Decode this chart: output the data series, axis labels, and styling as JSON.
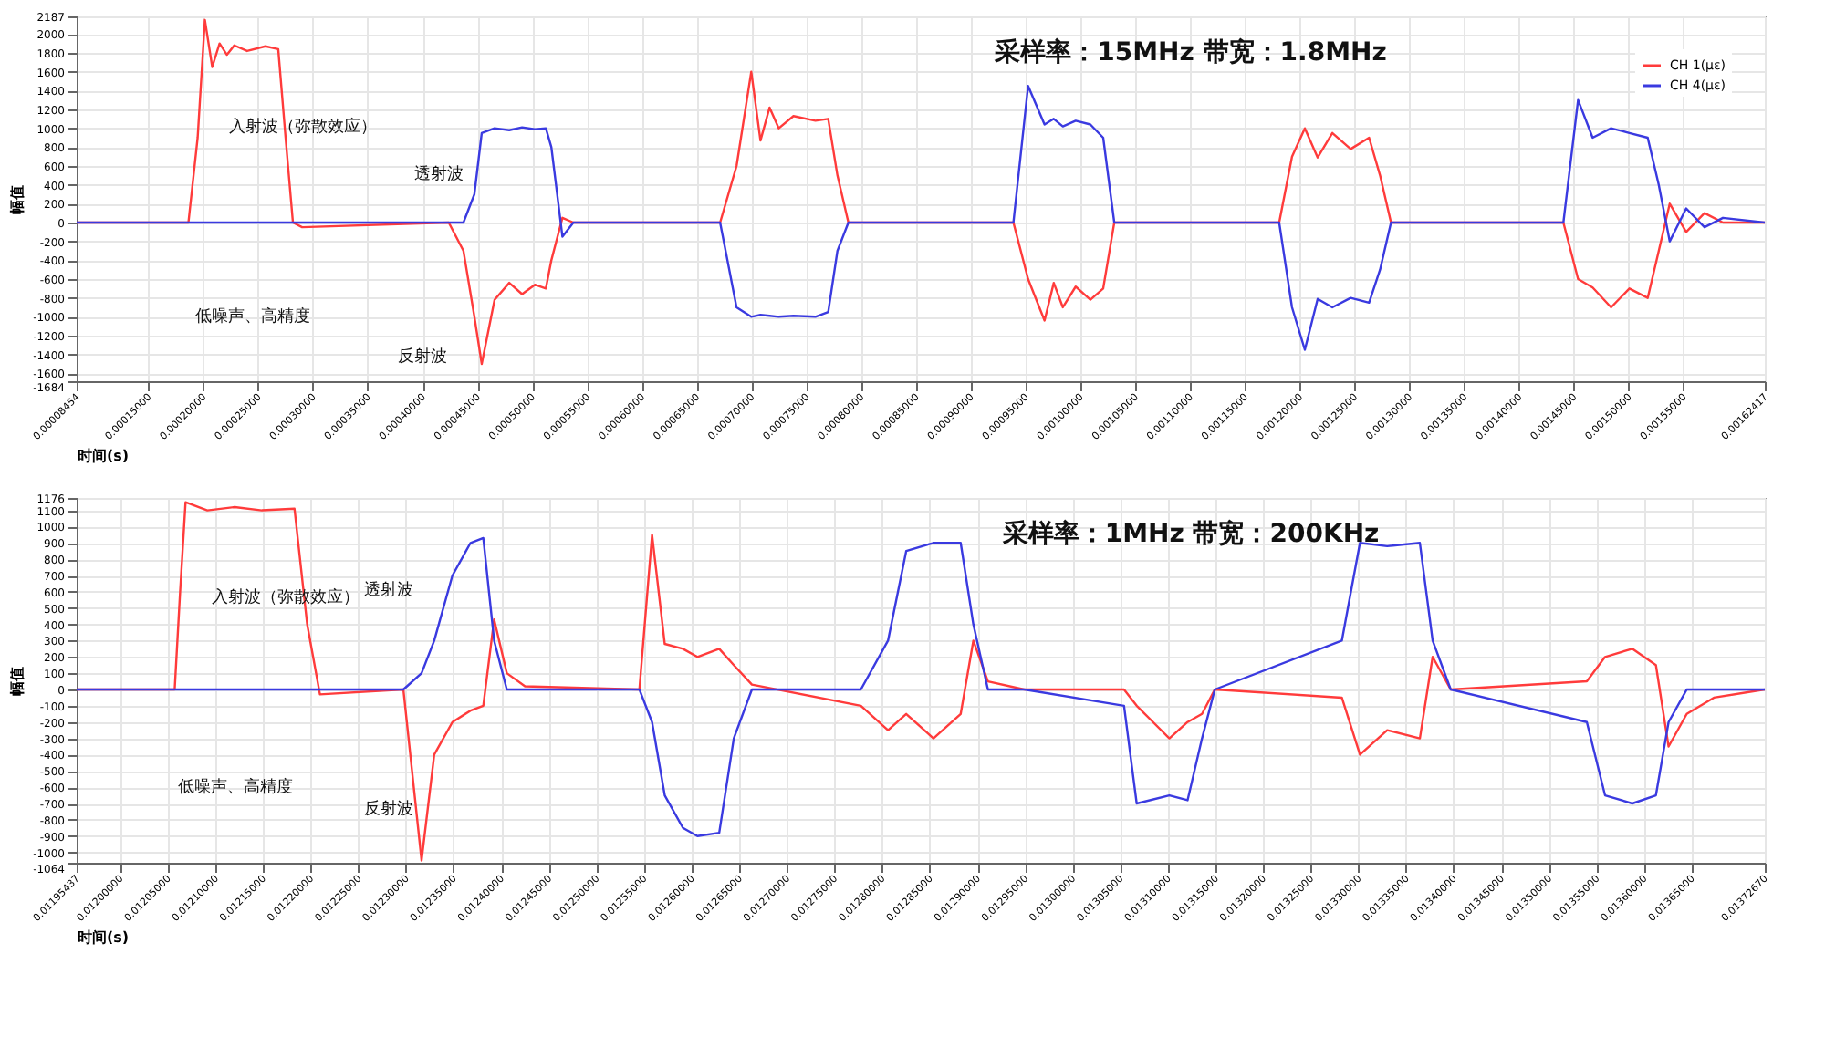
{
  "chart_data": [
    {
      "type": "line",
      "xlabel": "时间(s)",
      "ylabel": "幅值",
      "legend": "top right",
      "grid": true,
      "xlim": [
        8.454e-05,
        0.00162417
      ],
      "xticks": [
        {
          "value": 8.454e-05,
          "label": "0.00008454"
        },
        {
          "value": 0.00015,
          "label": "0.00015000"
        },
        {
          "value": 0.0002,
          "label": "0.00020000"
        },
        {
          "value": 0.00025,
          "label": "0.00025000"
        },
        {
          "value": 0.0003,
          "label": "0.00030000"
        },
        {
          "value": 0.00035,
          "label": "0.00035000"
        },
        {
          "value": 0.0004,
          "label": "0.00040000"
        },
        {
          "value": 0.00045,
          "label": "0.00045000"
        },
        {
          "value": 0.0005,
          "label": "0.00050000"
        },
        {
          "value": 0.00055,
          "label": "0.00055000"
        },
        {
          "value": 0.0006,
          "label": "0.00060000"
        },
        {
          "value": 0.00065,
          "label": "0.00065000"
        },
        {
          "value": 0.0007,
          "label": "0.00070000"
        },
        {
          "value": 0.00075,
          "label": "0.00075000"
        },
        {
          "value": 0.0008,
          "label": "0.00080000"
        },
        {
          "value": 0.00085,
          "label": "0.00085000"
        },
        {
          "value": 0.0009,
          "label": "0.00090000"
        },
        {
          "value": 0.00095,
          "label": "0.00095000"
        },
        {
          "value": 0.001,
          "label": "0.00100000"
        },
        {
          "value": 0.00105,
          "label": "0.00105000"
        },
        {
          "value": 0.0011,
          "label": "0.00110000"
        },
        {
          "value": 0.00115,
          "label": "0.00115000"
        },
        {
          "value": 0.0012,
          "label": "0.00120000"
        },
        {
          "value": 0.00125,
          "label": "0.00125000"
        },
        {
          "value": 0.0013,
          "label": "0.00130000"
        },
        {
          "value": 0.00135,
          "label": "0.00135000"
        },
        {
          "value": 0.0014,
          "label": "0.00140000"
        },
        {
          "value": 0.00145,
          "label": "0.00145000"
        },
        {
          "value": 0.0015,
          "label": "0.00150000"
        },
        {
          "value": 0.00155,
          "label": "0.00155000"
        },
        {
          "value": 0.00162417,
          "label": "0.00162417"
        }
      ],
      "ylim": [
        -1684,
        2187
      ],
      "yticks": [
        -1684,
        -1600,
        -1400,
        -1200,
        -1000,
        -800,
        -600,
        -400,
        -200,
        0,
        200,
        400,
        600,
        800,
        1000,
        1200,
        1400,
        1600,
        1800,
        2000,
        2187
      ],
      "x": [
        8.454e-05,
        0.0001865,
        0.0001949,
        0.0002015,
        0.0002082,
        0.0002149,
        0.0002216,
        0.0002283,
        0.00024,
        0.0002567,
        0.0002684,
        0.0002751,
        0.0002818,
        0.0002902,
        0.0004239,
        0.0004373,
        0.0004473,
        0.000454,
        0.0004657,
        0.0004791,
        0.0004908,
        0.0005025,
        0.0005125,
        0.0005175,
        0.0005276,
        0.0005376,
        0.0006714,
        0.0006864,
        0.0006998,
        0.0007082,
        0.0007165,
        0.0007249,
        0.0007383,
        0.0007583,
        0.00077,
        0.0007784,
        0.0007884,
        0.0009389,
        0.0009523,
        0.0009673,
        0.0009757,
        0.000984,
        0.0009957,
        0.0010091,
        0.0010208,
        0.0010309,
        0.0011813,
        0.001193,
        0.0012047,
        0.0012164,
        0.0012298,
        0.0012465,
        0.0012633,
        0.0012733,
        0.0012833,
        0.0014405,
        0.0014539,
        0.0014672,
        0.001484,
        0.0015007,
        0.0015174,
        0.0015275,
        0.0015375,
        0.0015525,
        0.0015692,
        0.001586,
        0.00162417
      ],
      "series": [
        {
          "name": "CH 1(με)",
          "color": "#ff3b3b",
          "values": [
            0,
            0,
            900,
            2150,
            1650,
            1900,
            1780,
            1880,
            1820,
            1870,
            1840,
            900,
            0,
            -50,
            0,
            -300,
            -1000,
            -1500,
            -820,
            -640,
            -760,
            -660,
            -700,
            -400,
            50,
            0,
            0,
            600,
            1600,
            870,
            1220,
            1000,
            1130,
            1080,
            1100,
            500,
            0,
            0,
            -600,
            -1040,
            -640,
            -900,
            -680,
            -820,
            -700,
            0,
            0,
            700,
            1000,
            690,
            950,
            780,
            900,
            500,
            0,
            0,
            -600,
            -690,
            -900,
            -700,
            -800,
            -300,
            200,
            -100,
            100,
            0,
            0
          ]
        },
        {
          "name": "CH 4(με)",
          "color": "#3a3ae0",
          "values": [
            0,
            0,
            0,
            0,
            0,
            0,
            0,
            0,
            0,
            0,
            0,
            0,
            0,
            0,
            0,
            0,
            300,
            950,
            1000,
            980,
            1010,
            990,
            1000,
            800,
            -150,
            0,
            0,
            -900,
            -1000,
            -980,
            -990,
            -1000,
            -990,
            -1000,
            -950,
            -300,
            0,
            0,
            1450,
            1040,
            1100,
            1020,
            1080,
            1040,
            900,
            0,
            0,
            -900,
            -1350,
            -810,
            -900,
            -800,
            -850,
            -500,
            0,
            0,
            1300,
            900,
            1000,
            950,
            900,
            400,
            -200,
            150,
            -50,
            50,
            0
          ]
        }
      ],
      "annotations": [
        "采样率：15MHz   带宽：1.8MHz",
        "入射波（弥散效应）",
        "透射波",
        "低噪声、高精度",
        "反射波"
      ]
    },
    {
      "type": "line",
      "xlabel": "时间(s)",
      "ylabel": "幅值",
      "legend": "top right",
      "grid": true,
      "xlim": [
        0.01195437,
        0.0137267
      ],
      "xticks": [
        {
          "value": 0.01195437,
          "label": "0.01195437"
        },
        {
          "value": 0.012,
          "label": "0.01200000"
        },
        {
          "value": 0.01205,
          "label": "0.01205000"
        },
        {
          "value": 0.0121,
          "label": "0.01210000"
        },
        {
          "value": 0.01215,
          "label": "0.01215000"
        },
        {
          "value": 0.0122,
          "label": "0.01220000"
        },
        {
          "value": 0.01225,
          "label": "0.01225000"
        },
        {
          "value": 0.0123,
          "label": "0.01230000"
        },
        {
          "value": 0.01235,
          "label": "0.01235000"
        },
        {
          "value": 0.0124,
          "label": "0.01240000"
        },
        {
          "value": 0.01245,
          "label": "0.01245000"
        },
        {
          "value": 0.0125,
          "label": "0.01250000"
        },
        {
          "value": 0.01255,
          "label": "0.01255000"
        },
        {
          "value": 0.0126,
          "label": "0.01260000"
        },
        {
          "value": 0.01265,
          "label": "0.01265000"
        },
        {
          "value": 0.0127,
          "label": "0.01270000"
        },
        {
          "value": 0.01275,
          "label": "0.01275000"
        },
        {
          "value": 0.0128,
          "label": "0.01280000"
        },
        {
          "value": 0.01285,
          "label": "0.01285000"
        },
        {
          "value": 0.0129,
          "label": "0.01290000"
        },
        {
          "value": 0.01295,
          "label": "0.01295000"
        },
        {
          "value": 0.013,
          "label": "0.01300000"
        },
        {
          "value": 0.01305,
          "label": "0.01305000"
        },
        {
          "value": 0.0131,
          "label": "0.01310000"
        },
        {
          "value": 0.01315,
          "label": "0.01315000"
        },
        {
          "value": 0.0132,
          "label": "0.01320000"
        },
        {
          "value": 0.01325,
          "label": "0.01325000"
        },
        {
          "value": 0.0133,
          "label": "0.01330000"
        },
        {
          "value": 0.01335,
          "label": "0.01335000"
        },
        {
          "value": 0.0134,
          "label": "0.01340000"
        },
        {
          "value": 0.01345,
          "label": "0.01345000"
        },
        {
          "value": 0.0135,
          "label": "0.01350000"
        },
        {
          "value": 0.01355,
          "label": "0.01355000"
        },
        {
          "value": 0.0136,
          "label": "0.01360000"
        },
        {
          "value": 0.01365,
          "label": "0.01365000"
        },
        {
          "value": 0.0137267,
          "label": "0.01372670"
        }
      ],
      "ylim": [
        -1064,
        1176
      ],
      "yticks": [
        -1064,
        -1000,
        -900,
        -800,
        -700,
        -600,
        -500,
        -400,
        -300,
        -200,
        -100,
        0,
        100,
        200,
        300,
        400,
        500,
        600,
        700,
        800,
        900,
        1000,
        1100,
        1176
      ],
      "x": [
        0.01195437,
        0.0120573,
        0.012063,
        0.0120687,
        0.0120916,
        0.0121202,
        0.0121488,
        0.0121831,
        0.0121964,
        0.0122098,
        0.0122974,
        0.0123165,
        0.0123298,
        0.0123489,
        0.0123679,
        0.0123813,
        0.0123927,
        0.012406,
        0.0124251,
        0.0125452,
        0.0125585,
        0.0125718,
        0.0125909,
        0.0126061,
        0.012629,
        0.0126443,
        0.0126633,
        0.0127777,
        0.0128062,
        0.0128253,
        0.0128539,
        0.0128825,
        0.0128958,
        0.0129111,
        0.0129492,
        0.013054,
        0.0130673,
        0.0131016,
        0.0131207,
        0.0131359,
        0.0131493,
        0.0132827,
        0.0133017,
        0.0133303,
        0.0133646,
        0.013378,
        0.013397,
        0.0135399,
        0.013559,
        0.0135876,
        0.0136124,
        0.0136257,
        0.0136448,
        0.0136733,
        0.0137267
      ],
      "series": [
        {
          "name": "CH 1(με)",
          "color": "#ff3b3b",
          "values": [
            0,
            0,
            600,
            1150,
            1100,
            1120,
            1100,
            1110,
            400,
            -30,
            0,
            -1050,
            -400,
            -200,
            -130,
            -100,
            430,
            100,
            20,
            0,
            950,
            280,
            250,
            200,
            250,
            150,
            30,
            -100,
            -250,
            -150,
            -300,
            -150,
            300,
            50,
            0,
            0,
            -100,
            -300,
            -200,
            -150,
            0,
            -50,
            -400,
            -250,
            -300,
            200,
            0,
            50,
            200,
            250,
            150,
            -350,
            -150,
            -50,
            0
          ]
        },
        {
          "name": "CH 4(με)",
          "color": "#3a3ae0",
          "values": [
            0,
            0,
            0,
            0,
            0,
            0,
            0,
            0,
            0,
            0,
            0,
            100,
            300,
            700,
            900,
            930,
            300,
            0,
            0,
            0,
            -200,
            -650,
            -850,
            -900,
            -880,
            -300,
            0,
            0,
            300,
            850,
            900,
            900,
            400,
            0,
            0,
            -100,
            -700,
            -650,
            -680,
            -300,
            0,
            300,
            900,
            880,
            900,
            300,
            0,
            -200,
            -650,
            -700,
            -650,
            -200,
            0,
            0,
            0
          ]
        }
      ],
      "annotations": [
        "采样率：1MHz   带宽：200KHz",
        "入射波（弥散效应）",
        "透射波",
        "低噪声、高精度",
        "反射波"
      ]
    }
  ]
}
